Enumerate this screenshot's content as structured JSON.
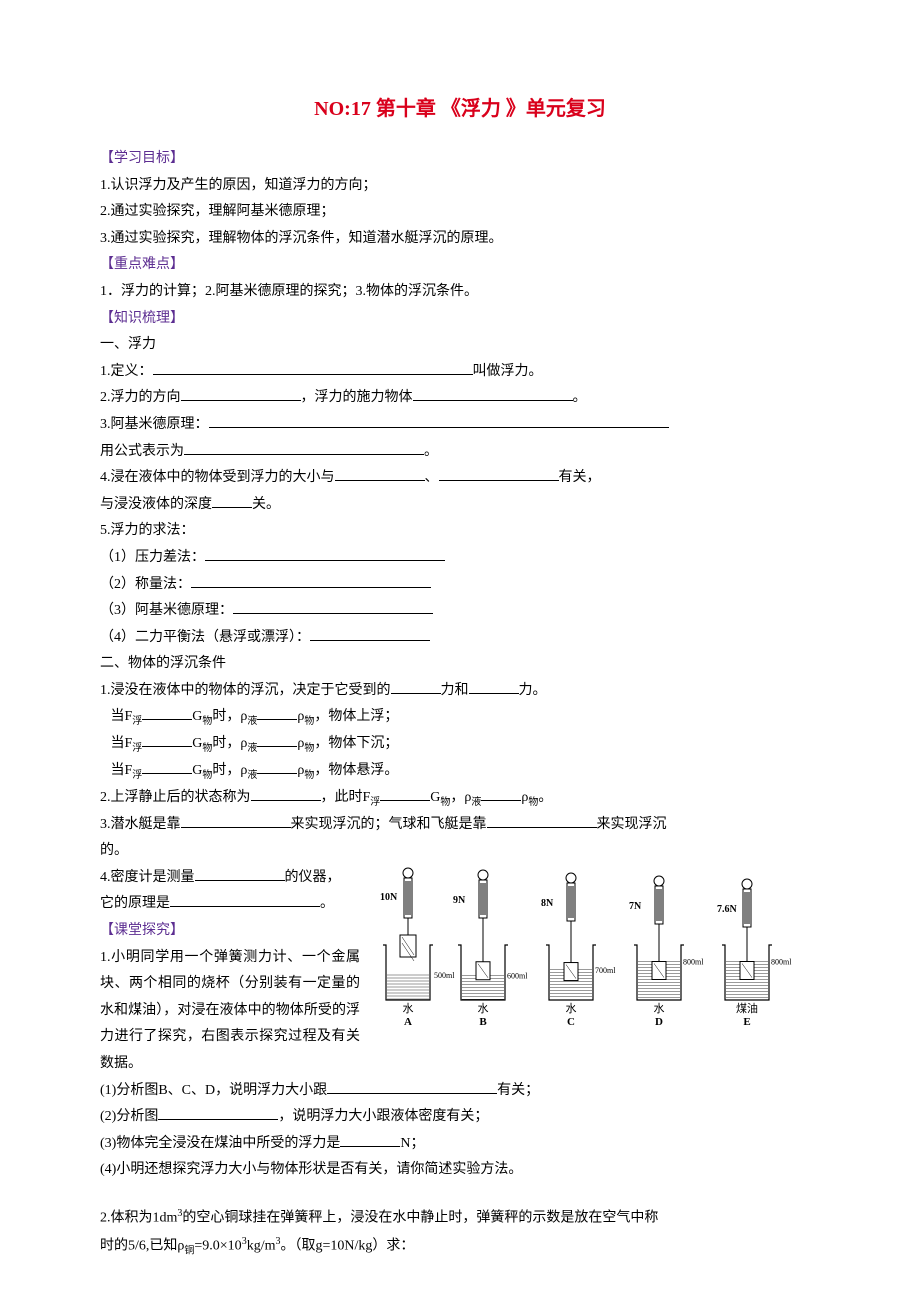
{
  "title": "NO:17  第十章  《浮力 》单元复习",
  "sec_objectives": "【学习目标】",
  "obj1": "1.认识浮力及产生的原因，知道浮力的方向；",
  "obj2": "2.通过实验探究，理解阿基米德原理；",
  "obj3": "3.通过实验探究，理解物体的浮沉条件，知道潜水艇浮沉的原理。",
  "sec_focus": "【重点难点】",
  "focus1": "1．浮力的计算；2.阿基米德原理的探究；3.物体的浮沉条件。",
  "sec_knowledge": "【知识梳理】",
  "k_h1": "一、浮力",
  "k1a": "1.定义：",
  "k1b": "叫做浮力。",
  "k2a": "2.浮力的方向",
  "k2b": "，浮力的施力物体",
  "k2c": "。",
  "k3a": "3.阿基米德原理：",
  "k3b": "用公式表示为",
  "k3c": "。",
  "k4a": "4.浸在液体中的物体受到浮力的大小与",
  "k4b": "、",
  "k4c": "有关，",
  "k4d": "与浸没液体的深度",
  "k4e": "关。",
  "k5": "5.浮力的求法：",
  "k5_1": "（1）压力差法：",
  "k5_2": "（2）称量法：",
  "k5_3": "（3）阿基米德原理：",
  "k5_4": "（4）二力平衡法（悬浮或漂浮）：",
  "k_h2": "二、物体的浮沉条件",
  "s1a": "1.浸没在液体中的物体的浮沉，决定于它受到的",
  "s1b": "力和",
  "s1c": "力。",
  "s1_line1a": "   当F",
  "s1_line1_sub1": "浮",
  "s1_line1b": "G",
  "s1_line1_sub2": "物",
  "s1_line1c": "时，ρ",
  "s1_line1_sub3": "液",
  "s1_line1d": "ρ",
  "s1_line1_sub4": "物",
  "s1_line1e": "，物体上浮；",
  "s1_line2e": "，物体下沉；",
  "s1_line3e": "，物体悬浮。",
  "s2a": "2.上浮静止后的状态称为",
  "s2b": "，此时F",
  "s2c": "G",
  "s2d": "，ρ",
  "s2e": "ρ",
  "s2f": "。",
  "s3a": "3.潜水艇是靠",
  "s3b": "来实现浮沉的；气球和飞艇是靠",
  "s3c": "来实现浮沉",
  "s3d": "的。",
  "s4a": "4.密度计是测量",
  "s4b": "的仪器，",
  "s4c": "它的原理是",
  "s4d": "。",
  "sec_class": "【课堂探究】",
  "c1_p1": "1.小明同学用一个弹簧测力计、一个金属块、两个相同的烧杯（分别装有一定量的水和煤油），对浸在液体中的物体所受的浮力进行了探究，右图表示探究过程及有关数据。",
  "c1_q1a": "(1)分析图B、C、D，说明浮力大小跟",
  "c1_q1b": "有关；",
  "c1_q2a": "(2)分析图",
  "c1_q2b": "，说明浮力大小跟液体密度有关；",
  "c1_q3a": "(3)物体完全浸没在煤油中所受的浮力是",
  "c1_q3b": "N；",
  "c1_q4": "(4)小明还想探究浮力大小与物体形状是否有关，请你简述实验方法。",
  "c2a": "2.体积为1dm",
  "c2a_sup": "3",
  "c2b": "的空心铜球挂在弹簧秤上，浸没在水中静止时，弹簧秤的示数是放在空气中称",
  "c2c": "时的5/6,已知ρ",
  "c2c_sub": "铜",
  "c2d": "=9.0×10",
  "c2d_sup": "3",
  "c2e": "kg/m",
  "c2e_sup": "3",
  "c2f": "。（取g=10N/kg）求：",
  "diagram": {
    "readings": [
      "10N",
      "9N",
      "8N",
      "7N",
      "7.6N"
    ],
    "volumes": [
      "500ml",
      "600ml",
      "700ml",
      "800ml",
      "800ml"
    ],
    "liquids": [
      "水",
      "水",
      "水",
      "水",
      "煤油"
    ],
    "labels": [
      "A",
      "B",
      "C",
      "D",
      "E"
    ],
    "colors": {
      "stroke": "#000000",
      "fill_water": "#ffffff",
      "background": "#ffffff"
    }
  }
}
